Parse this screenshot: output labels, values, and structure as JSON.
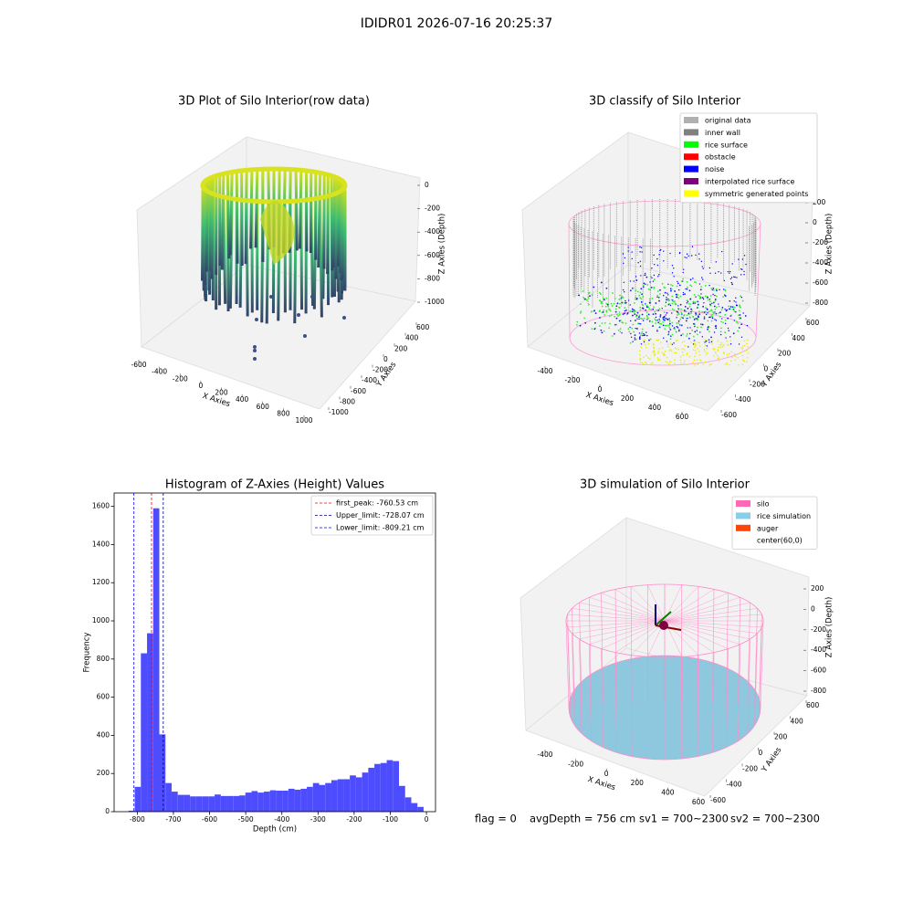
{
  "title": "IDIDR01 2026-07-16 20:25:37",
  "footer": [
    "flag = 0",
    "avgDepth = 756 cm",
    "sv1 = 700~2300",
    "sv2 = 700~2300"
  ],
  "chart_data": [
    {
      "type": "scatter3d",
      "title": "3D Plot of Silo Interior(row data)",
      "xlabel": "X Axies",
      "ylabel": "Y Axies",
      "zlabel": "Z Axies (Depth)",
      "xticks": [
        -600,
        -400,
        -200,
        0,
        200,
        400,
        600,
        800,
        1000
      ],
      "yticks": [
        -1000,
        -800,
        -600,
        -400,
        -200,
        0,
        200,
        400,
        600
      ],
      "zticks": [
        0,
        -200,
        -400,
        -600,
        -800,
        -1000
      ]
    },
    {
      "type": "scatter3d",
      "title": "3D classify of Silo Interior",
      "xlabel": "X Axies",
      "ylabel": "Y Axies",
      "zlabel": "Z Axies (Depth)",
      "xticks": [
        -400,
        -200,
        0,
        200,
        400,
        600
      ],
      "yticks": [
        -600,
        -400,
        -200,
        0,
        200,
        400,
        600
      ],
      "zticks": [
        200,
        0,
        -200,
        -400,
        -600,
        -800
      ],
      "legend": [
        {
          "name": "original data",
          "color": "#b0b0b0"
        },
        {
          "name": "inner wall",
          "color": "#808080"
        },
        {
          "name": "rice surface",
          "color": "#00ff00"
        },
        {
          "name": "obstacle",
          "color": "#ff0000"
        },
        {
          "name": "noise",
          "color": "#0000ff"
        },
        {
          "name": "interpolated rice surface",
          "color": "#800080"
        },
        {
          "name": "symmetric generated points",
          "color": "#ffff00"
        }
      ]
    },
    {
      "type": "histogram",
      "title": "Histogram of Z-Axies (Height) Values",
      "xlabel": "Depth (cm)",
      "ylabel": "Frequency",
      "color": "#4d4dff",
      "bins": [
        -824,
        -807,
        -790,
        -773,
        -756,
        -739,
        -722,
        -705,
        -688,
        -671,
        -654,
        -637,
        -620,
        -603,
        -586,
        -569,
        -552,
        -535,
        -518,
        -501,
        -484,
        -467,
        -450,
        -433,
        -416,
        -399,
        -382,
        -365,
        -348,
        -331,
        -314,
        -297,
        -280,
        -263,
        -246,
        -229,
        -212,
        -195,
        -178,
        -161,
        -144,
        -127,
        -110,
        -93,
        -76,
        -59,
        -42,
        -25,
        -8
      ],
      "values": [
        5,
        130,
        830,
        935,
        1590,
        405,
        150,
        105,
        88,
        88,
        80,
        80,
        80,
        80,
        90,
        82,
        82,
        82,
        85,
        100,
        108,
        100,
        105,
        112,
        110,
        110,
        120,
        115,
        120,
        130,
        150,
        140,
        150,
        165,
        170,
        170,
        190,
        180,
        205,
        230,
        250,
        255,
        270,
        265,
        135,
        75,
        45,
        25
      ],
      "xlim": [
        -864,
        25
      ],
      "ylim": [
        0,
        1670
      ],
      "xticks": [
        -800,
        -700,
        -600,
        -500,
        -400,
        -300,
        -200,
        -100,
        0
      ],
      "yticks": [
        0,
        200,
        400,
        600,
        800,
        1000,
        1200,
        1400,
        1600
      ],
      "lines": [
        {
          "name": "first_peak: -760.53 cm",
          "value": -760.53,
          "color": "#ff0000"
        },
        {
          "name": "Upper_limit: -728.07 cm",
          "value": -728.07,
          "color": "#00008b"
        },
        {
          "name": "Lower_limit: -809.21 cm",
          "value": -809.21,
          "color": "#0000ff"
        }
      ]
    },
    {
      "type": "scatter3d",
      "title": "3D simulation of Silo Interior",
      "xlabel": "X Axies",
      "ylabel": "Y Axies",
      "zlabel": "Z Axies (Depth)",
      "xticks": [
        -400,
        -200,
        0,
        200,
        400,
        600
      ],
      "yticks": [
        -600,
        -400,
        -200,
        0,
        200,
        400,
        600
      ],
      "zticks": [
        200,
        0,
        -200,
        -400,
        -600,
        -800
      ],
      "legend": [
        {
          "name": "silo",
          "color": "#ff69b4"
        },
        {
          "name": "rice simulation",
          "color": "#87ceeb"
        },
        {
          "name": "auger",
          "color": "#ff4500"
        },
        {
          "name": "center(60,0)",
          "color": "none"
        }
      ]
    }
  ]
}
